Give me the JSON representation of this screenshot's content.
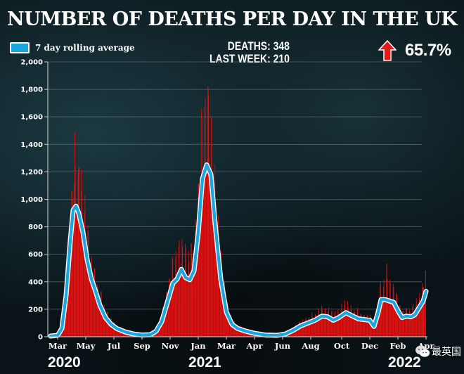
{
  "header": {
    "title": "NUMBER OF DEATHS PER DAY IN THE UK",
    "deaths_label": "DEATHS: 348",
    "last_week_label": "LAST WEEK: 210",
    "change_pct": "65.7%",
    "change_direction_icon": "arrow-up-icon"
  },
  "watermark": {
    "icon": "wechat-icon",
    "text": "最英国"
  },
  "colors": {
    "bars": "#e01010",
    "line": "#1aa7e0",
    "line_outline": "#ffffff",
    "arrow": "#e21a1a"
  },
  "chart_data": {
    "type": "bar",
    "title": "NUMBER OF DEATHS PER DAY IN THE UK",
    "xlabel": "",
    "ylabel": "",
    "ylim": [
      0,
      2000
    ],
    "yticks": [
      0,
      200,
      400,
      600,
      800,
      1000,
      1200,
      1400,
      1600,
      1800,
      2000
    ],
    "ytick_labels": [
      "0",
      "200",
      "400",
      "600",
      "800",
      "1,000",
      "1,200",
      "1,400",
      "1,600",
      "1,800",
      "2,000"
    ],
    "grid": true,
    "legend": {
      "position": "top-left",
      "entries": [
        "7 day rolling average"
      ]
    },
    "x_ticks": [
      {
        "label": "Mar",
        "month_index": 0
      },
      {
        "label": "May",
        "month_index": 2
      },
      {
        "label": "Jul",
        "month_index": 4
      },
      {
        "label": "Sep",
        "month_index": 6
      },
      {
        "label": "Nov",
        "month_index": 8
      },
      {
        "label": "Jan",
        "month_index": 10
      },
      {
        "label": "Mar",
        "month_index": 12
      },
      {
        "label": "Apr",
        "month_index": 14
      },
      {
        "label": "Jun",
        "month_index": 16
      },
      {
        "label": "Aug",
        "month_index": 18
      },
      {
        "label": "Oct",
        "month_index": 20.2
      },
      {
        "label": "Dec",
        "month_index": 22.2
      },
      {
        "label": "Feb",
        "month_index": 24.2
      },
      {
        "label": "Apr",
        "month_index": 26.2
      }
    ],
    "year_labels": [
      {
        "label": "2020",
        "month_index": 0
      },
      {
        "label": "2021",
        "month_index": 10
      },
      {
        "label": "2022",
        "month_index": 24.2
      }
    ],
    "x_range_months": [
      -0.6,
      26.2
    ],
    "series": [
      {
        "name": "7 day rolling average",
        "type": "line",
        "points": [
          [
            -0.5,
            5
          ],
          [
            0,
            10
          ],
          [
            0.3,
            60
          ],
          [
            0.6,
            300
          ],
          [
            0.9,
            700
          ],
          [
            1.1,
            920
          ],
          [
            1.3,
            950
          ],
          [
            1.5,
            900
          ],
          [
            1.8,
            760
          ],
          [
            2.1,
            560
          ],
          [
            2.4,
            420
          ],
          [
            2.7,
            330
          ],
          [
            3.0,
            230
          ],
          [
            3.4,
            140
          ],
          [
            3.8,
            90
          ],
          [
            4.2,
            60
          ],
          [
            4.8,
            35
          ],
          [
            5.4,
            20
          ],
          [
            6.0,
            12
          ],
          [
            6.6,
            15
          ],
          [
            7.0,
            40
          ],
          [
            7.4,
            110
          ],
          [
            7.8,
            250
          ],
          [
            8.2,
            390
          ],
          [
            8.5,
            420
          ],
          [
            8.8,
            490
          ],
          [
            9.1,
            430
          ],
          [
            9.4,
            415
          ],
          [
            9.7,
            480
          ],
          [
            10.0,
            760
          ],
          [
            10.3,
            1150
          ],
          [
            10.6,
            1250
          ],
          [
            10.9,
            1180
          ],
          [
            11.2,
            820
          ],
          [
            11.6,
            420
          ],
          [
            12.0,
            180
          ],
          [
            12.4,
            90
          ],
          [
            12.8,
            60
          ],
          [
            13.4,
            40
          ],
          [
            14.0,
            25
          ],
          [
            14.8,
            12
          ],
          [
            15.6,
            10
          ],
          [
            16.2,
            20
          ],
          [
            16.8,
            50
          ],
          [
            17.3,
            80
          ],
          [
            17.8,
            100
          ],
          [
            18.3,
            120
          ],
          [
            18.8,
            150
          ],
          [
            19.2,
            145
          ],
          [
            19.6,
            120
          ],
          [
            20.0,
            140
          ],
          [
            20.5,
            175
          ],
          [
            21.0,
            150
          ],
          [
            21.4,
            130
          ],
          [
            21.8,
            125
          ],
          [
            22.2,
            120
          ],
          [
            22.5,
            75
          ],
          [
            22.8,
            180
          ],
          [
            23.0,
            270
          ],
          [
            23.3,
            270
          ],
          [
            23.6,
            260
          ],
          [
            23.9,
            250
          ],
          [
            24.2,
            190
          ],
          [
            24.5,
            140
          ],
          [
            24.8,
            150
          ],
          [
            25.1,
            145
          ],
          [
            25.4,
            160
          ],
          [
            25.7,
            210
          ],
          [
            26.0,
            260
          ],
          [
            26.2,
            330
          ]
        ]
      },
      {
        "name": "Daily deaths",
        "type": "bar",
        "peak_values": [
          {
            "month_index": 1.2,
            "value": 1120
          },
          {
            "month_index": 1.5,
            "value": 1230
          },
          {
            "month_index": 9.5,
            "value": 680
          },
          {
            "month_index": 10.7,
            "value": 1820
          },
          {
            "month_index": 23.4,
            "value": 530
          },
          {
            "month_index": 26.0,
            "value": 360
          }
        ]
      }
    ]
  }
}
